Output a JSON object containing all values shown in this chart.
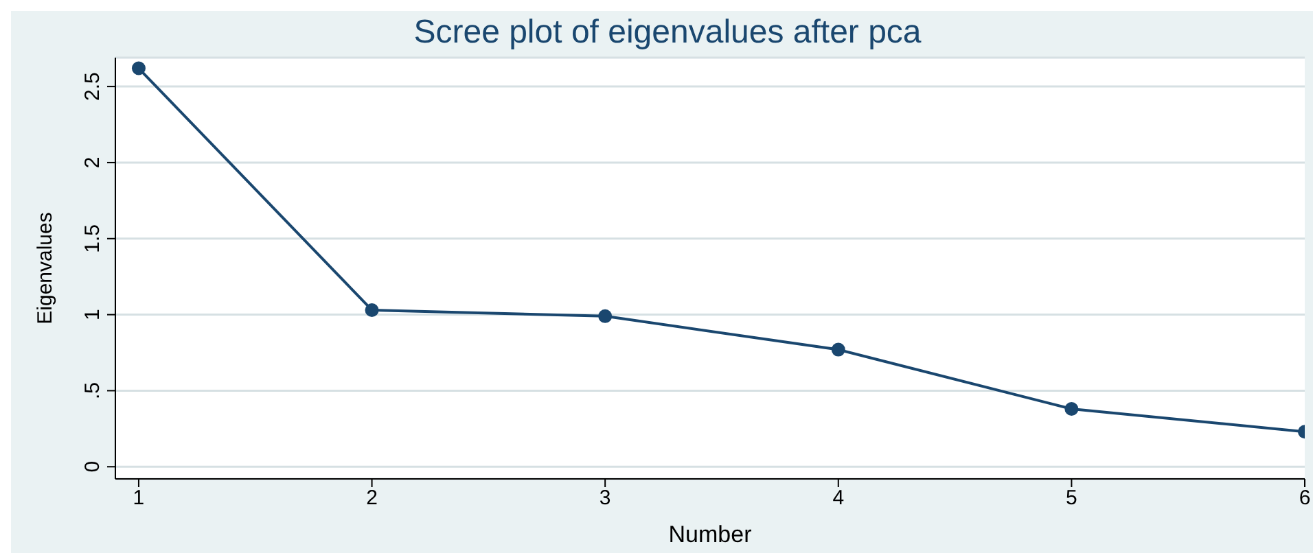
{
  "chart_data": {
    "type": "line",
    "title": "Scree plot of eigenvalues after pca",
    "xlabel": "Number",
    "ylabel": "Eigenvalues",
    "x": [
      1,
      2,
      3,
      4,
      5,
      6
    ],
    "series": [
      {
        "color": "#1a476f",
        "values": [
          2.62,
          1.03,
          0.99,
          0.77,
          0.38,
          0.23
        ]
      }
    ],
    "xlim": [
      0.9,
      6
    ],
    "xticks": [
      1,
      2,
      3,
      4,
      5,
      6
    ],
    "ylim": [
      -0.08,
      2.69
    ],
    "yticks": [
      0,
      {
        "value": 0.5,
        "label": ".5"
      },
      1,
      1.5,
      2,
      2.5
    ],
    "grid": "y",
    "marker": "circle",
    "line_style": "solid"
  }
}
